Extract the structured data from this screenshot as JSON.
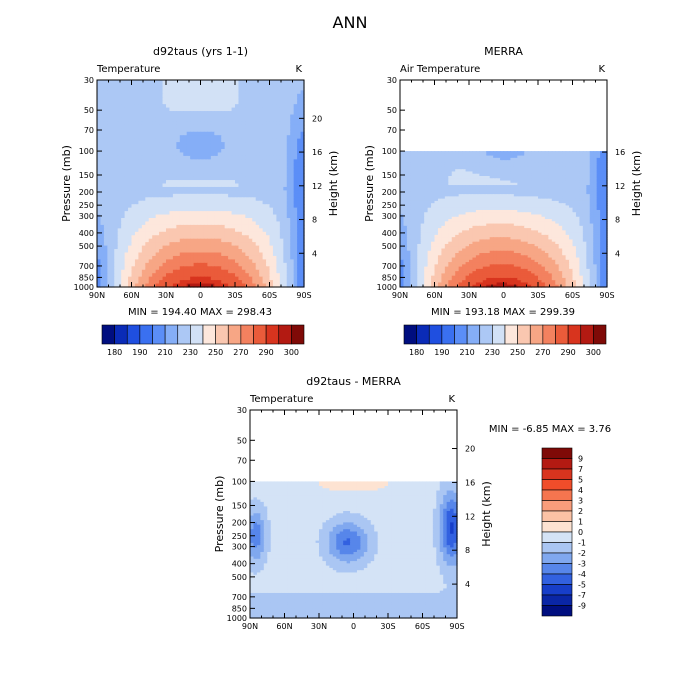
{
  "page": {
    "title": "ANN"
  },
  "chart_data": [
    {
      "type": "heatmap",
      "title": "d92taus (yrs 1-1)",
      "subtitle_left": "Temperature",
      "subtitle_right": "K",
      "ylabel_left": "Pressure (mb)",
      "ylabel_right": "Height (km)",
      "x_ticks": [
        "90N",
        "60N",
        "30N",
        "0",
        "30S",
        "60S",
        "90S"
      ],
      "y_ticks_pressure": [
        "30",
        "50",
        "70",
        "100",
        "150",
        "200",
        "250",
        "300",
        "400",
        "500",
        "700",
        "850",
        "1000"
      ],
      "y_ticks_height": [
        "20",
        "16",
        "12",
        "8",
        "4"
      ],
      "stats": "MIN = 194.40   MAX = 298.43",
      "min": 194.4,
      "max": 298.43,
      "top_pressure": 30,
      "colorbar_labels": [
        "180",
        "190",
        "210",
        "230",
        "250",
        "270",
        "290",
        "300"
      ],
      "colorbar_orientation": "horizontal"
    },
    {
      "type": "heatmap",
      "title": "MERRA",
      "subtitle_left": "Air Temperature",
      "subtitle_right": "K",
      "ylabel_left": "Pressure (mb)",
      "ylabel_right": "Height (km)",
      "x_ticks": [
        "90N",
        "60N",
        "30N",
        "0",
        "30S",
        "60S",
        "90S"
      ],
      "y_ticks_pressure": [
        "30",
        "50",
        "70",
        "100",
        "150",
        "200",
        "250",
        "300",
        "400",
        "500",
        "700",
        "850",
        "1000"
      ],
      "y_ticks_height": [
        "16",
        "12",
        "8",
        "4"
      ],
      "stats": "MIN = 193.18   MAX = 299.39",
      "min": 193.18,
      "max": 299.39,
      "top_pressure": 100,
      "colorbar_labels": [
        "180",
        "190",
        "210",
        "230",
        "250",
        "270",
        "290",
        "300"
      ],
      "colorbar_orientation": "horizontal"
    },
    {
      "type": "heatmap",
      "title": "d92taus - MERRA",
      "subtitle_left": "Temperature",
      "subtitle_right": "K",
      "ylabel_left": "Pressure (mb)",
      "ylabel_right": "Height (km)",
      "x_ticks": [
        "90N",
        "60N",
        "30N",
        "0",
        "30S",
        "60S",
        "90S"
      ],
      "y_ticks_pressure": [
        "30",
        "50",
        "70",
        "100",
        "150",
        "200",
        "250",
        "300",
        "400",
        "500",
        "700",
        "850",
        "1000"
      ],
      "y_ticks_height": [
        "20",
        "16",
        "12",
        "8",
        "4"
      ],
      "stats": "MIN =  -6.85   MAX =   3.76",
      "min": -6.85,
      "max": 3.76,
      "top_pressure": 100,
      "colorbar_labels": [
        "9",
        "7",
        "5",
        "4",
        "3",
        "2",
        "1",
        "0",
        "-1",
        "-2",
        "-3",
        "-4",
        "-5",
        "-7",
        "-9"
      ],
      "colorbar_orientation": "vertical"
    }
  ],
  "colors": {
    "temperature_levels": [
      "#000e7f",
      "#0a2bb7",
      "#1f4fe0",
      "#3a70f0",
      "#5b8ef7",
      "#85aef7",
      "#acc8f5",
      "#d2e1f6",
      "#fde7dc",
      "#fac7b0",
      "#f7a685",
      "#f3815f",
      "#ea5b3a",
      "#d8341e",
      "#b31a12",
      "#7f0a07"
    ],
    "diff_levels": [
      "#7f0a07",
      "#b31a12",
      "#d8341e",
      "#f04d2a",
      "#f5754f",
      "#f89d7b",
      "#fbc2a5",
      "#fde3d2",
      "#d4e3f6",
      "#aac6f3",
      "#80a8ef",
      "#5786ea",
      "#3261e0",
      "#173ec9",
      "#0a26a6",
      "#000e7f"
    ]
  }
}
